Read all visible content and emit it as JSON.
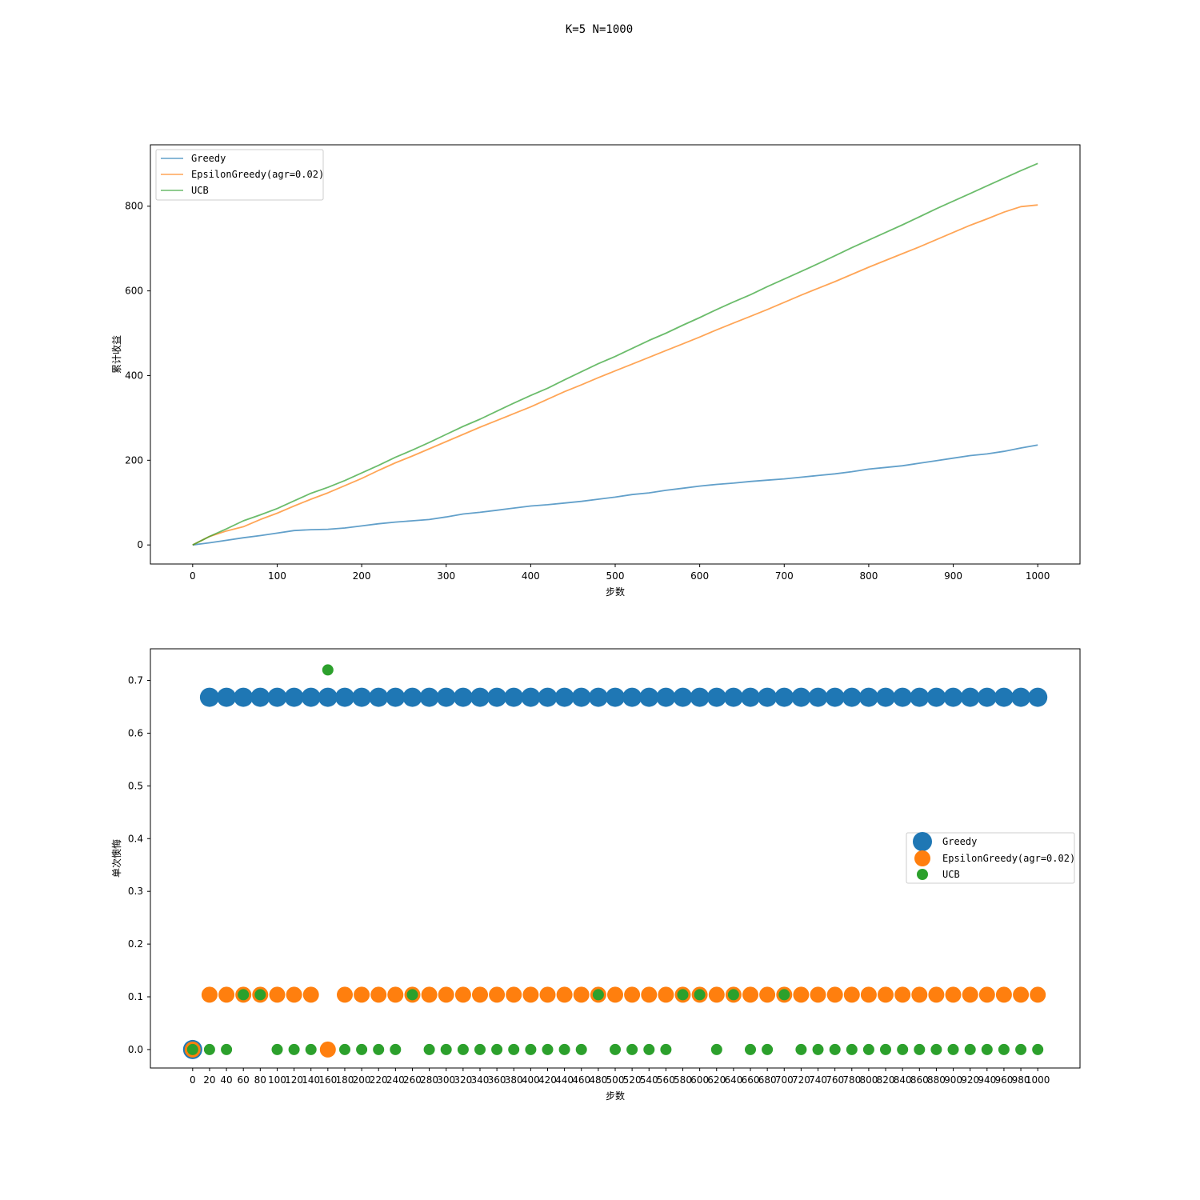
{
  "figure": {
    "title": "K=5 N=1000"
  },
  "chart_data": [
    {
      "type": "line",
      "title": "",
      "xlabel": "步数",
      "ylabel": "累计收益",
      "xlim": [
        -50,
        1050
      ],
      "ylim": [
        -45,
        945
      ],
      "xticks": [
        0,
        100,
        200,
        300,
        400,
        500,
        600,
        700,
        800,
        900,
        1000
      ],
      "yticks": [
        0,
        200,
        400,
        600,
        800
      ],
      "legend_position": "upper-left",
      "grid": false,
      "series": [
        {
          "name": "Greedy",
          "color": "#1f77b4",
          "x": [
            0,
            20,
            40,
            60,
            80,
            100,
            120,
            140,
            160,
            180,
            200,
            220,
            240,
            260,
            280,
            300,
            320,
            340,
            360,
            380,
            400,
            420,
            440,
            460,
            480,
            500,
            520,
            540,
            560,
            580,
            600,
            620,
            640,
            660,
            680,
            700,
            720,
            740,
            760,
            780,
            800,
            820,
            840,
            860,
            880,
            900,
            920,
            940,
            960,
            980,
            1000
          ],
          "y": [
            0,
            5,
            11,
            17,
            22,
            28,
            34,
            36,
            37,
            40,
            45,
            50,
            54,
            57,
            60,
            66,
            73,
            77,
            82,
            87,
            92,
            95,
            99,
            103,
            108,
            113,
            119,
            123,
            129,
            134,
            139,
            143,
            146,
            150,
            153,
            156,
            160,
            164,
            168,
            173,
            179,
            183,
            187,
            193,
            199,
            205,
            211,
            215,
            221,
            229,
            236
          ]
        },
        {
          "name": "EpsilonGreedy(agr=0.02)",
          "color": "#ff7f0e",
          "x": [
            0,
            20,
            40,
            60,
            80,
            100,
            120,
            140,
            160,
            180,
            200,
            220,
            240,
            260,
            280,
            300,
            320,
            340,
            360,
            380,
            400,
            420,
            440,
            460,
            480,
            500,
            520,
            540,
            560,
            580,
            600,
            620,
            640,
            660,
            680,
            700,
            720,
            740,
            760,
            780,
            800,
            820,
            840,
            860,
            880,
            900,
            920,
            940,
            960,
            980,
            1000
          ],
          "y": [
            0,
            20,
            33,
            43,
            60,
            75,
            92,
            108,
            123,
            140,
            157,
            176,
            194,
            210,
            227,
            244,
            261,
            278,
            294,
            310,
            326,
            344,
            362,
            378,
            395,
            411,
            427,
            443,
            459,
            475,
            491,
            508,
            524,
            540,
            556,
            573,
            590,
            606,
            622,
            639,
            656,
            672,
            688,
            704,
            721,
            738,
            755,
            770,
            786,
            799,
            803
          ]
        },
        {
          "name": "UCB",
          "color": "#2ca02c",
          "x": [
            0,
            20,
            40,
            60,
            80,
            100,
            120,
            140,
            160,
            180,
            200,
            220,
            240,
            260,
            280,
            300,
            320,
            340,
            360,
            380,
            400,
            420,
            440,
            460,
            480,
            500,
            520,
            540,
            560,
            580,
            600,
            620,
            640,
            660,
            680,
            700,
            720,
            740,
            760,
            780,
            800,
            820,
            840,
            860,
            880,
            900,
            920,
            940,
            960,
            980,
            1000
          ],
          "y": [
            0,
            20,
            38,
            57,
            71,
            86,
            104,
            122,
            136,
            152,
            170,
            188,
            207,
            224,
            242,
            261,
            280,
            297,
            316,
            335,
            353,
            370,
            390,
            409,
            428,
            445,
            464,
            483,
            500,
            519,
            537,
            556,
            574,
            591,
            610,
            628,
            646,
            664,
            683,
            702,
            720,
            738,
            756,
            775,
            794,
            812,
            830,
            848,
            866,
            884,
            901
          ]
        }
      ]
    },
    {
      "type": "scatter",
      "title": "",
      "xlabel": "步数",
      "ylabel": "单次懊悔",
      "xlim": [
        -50,
        1050
      ],
      "ylim": [
        -0.035,
        0.76
      ],
      "xticks": [
        0,
        20,
        40,
        60,
        80,
        100,
        120,
        140,
        160,
        180,
        200,
        220,
        240,
        260,
        280,
        300,
        320,
        340,
        360,
        380,
        400,
        420,
        440,
        460,
        480,
        500,
        520,
        540,
        560,
        580,
        600,
        620,
        640,
        660,
        680,
        700,
        720,
        740,
        760,
        780,
        800,
        820,
        840,
        860,
        880,
        900,
        920,
        940,
        960,
        980,
        1000
      ],
      "yticks": [
        0.0,
        0.1,
        0.2,
        0.3,
        0.4,
        0.5,
        0.6,
        0.7
      ],
      "ytick_labels": [
        "0.0",
        "0.1",
        "0.2",
        "0.3",
        "0.4",
        "0.5",
        "0.6",
        "0.7"
      ],
      "legend_position": "center-right",
      "grid": false,
      "series": [
        {
          "name": "Greedy",
          "color": "#1f77b4",
          "x": [
            0,
            20,
            40,
            60,
            80,
            100,
            120,
            140,
            160,
            180,
            200,
            220,
            240,
            260,
            280,
            300,
            320,
            340,
            360,
            380,
            400,
            420,
            440,
            460,
            480,
            500,
            520,
            540,
            560,
            580,
            600,
            620,
            640,
            660,
            680,
            700,
            720,
            740,
            760,
            780,
            800,
            820,
            840,
            860,
            880,
            900,
            920,
            940,
            960,
            980,
            1000
          ],
          "y": [
            0.0,
            0.668,
            0.668,
            0.668,
            0.668,
            0.668,
            0.668,
            0.668,
            0.668,
            0.668,
            0.668,
            0.668,
            0.668,
            0.668,
            0.668,
            0.668,
            0.668,
            0.668,
            0.668,
            0.668,
            0.668,
            0.668,
            0.668,
            0.668,
            0.668,
            0.668,
            0.668,
            0.668,
            0.668,
            0.668,
            0.668,
            0.668,
            0.668,
            0.668,
            0.668,
            0.668,
            0.668,
            0.668,
            0.668,
            0.668,
            0.668,
            0.668,
            0.668,
            0.668,
            0.668,
            0.668,
            0.668,
            0.668,
            0.668,
            0.668,
            0.668
          ]
        },
        {
          "name": "EpsilonGreedy(agr=0.02)",
          "color": "#ff7f0e",
          "x": [
            0,
            20,
            40,
            60,
            80,
            100,
            120,
            140,
            160,
            180,
            200,
            220,
            240,
            260,
            280,
            300,
            320,
            340,
            360,
            380,
            400,
            420,
            440,
            460,
            480,
            500,
            520,
            540,
            560,
            580,
            600,
            620,
            640,
            660,
            680,
            700,
            720,
            740,
            760,
            780,
            800,
            820,
            840,
            860,
            880,
            900,
            920,
            940,
            960,
            980,
            1000
          ],
          "y": [
            0.0,
            0.104,
            0.104,
            0.104,
            0.104,
            0.104,
            0.104,
            0.104,
            0.0,
            0.104,
            0.104,
            0.104,
            0.104,
            0.104,
            0.104,
            0.104,
            0.104,
            0.104,
            0.104,
            0.104,
            0.104,
            0.104,
            0.104,
            0.104,
            0.104,
            0.104,
            0.104,
            0.104,
            0.104,
            0.104,
            0.104,
            0.104,
            0.104,
            0.104,
            0.104,
            0.104,
            0.104,
            0.104,
            0.104,
            0.104,
            0.104,
            0.104,
            0.104,
            0.104,
            0.104,
            0.104,
            0.104,
            0.104,
            0.104,
            0.104,
            0.104
          ]
        },
        {
          "name": "UCB",
          "color": "#2ca02c",
          "x": [
            0,
            20,
            40,
            60,
            80,
            100,
            120,
            140,
            160,
            180,
            200,
            220,
            240,
            260,
            280,
            300,
            320,
            340,
            360,
            380,
            400,
            420,
            440,
            460,
            480,
            500,
            520,
            540,
            560,
            580,
            600,
            620,
            640,
            660,
            680,
            700,
            720,
            740,
            760,
            780,
            800,
            820,
            840,
            860,
            880,
            900,
            920,
            940,
            960,
            980,
            1000
          ],
          "y": [
            0.0,
            0.0,
            0.0,
            0.104,
            0.104,
            0.0,
            0.0,
            0.0,
            0.72,
            0.0,
            0.0,
            0.0,
            0.0,
            0.104,
            0.0,
            0.0,
            0.0,
            0.0,
            0.0,
            0.0,
            0.0,
            0.0,
            0.0,
            0.0,
            0.104,
            0.0,
            0.0,
            0.0,
            0.0,
            0.104,
            0.104,
            0.0,
            0.104,
            0.0,
            0.0,
            0.104,
            0.0,
            0.0,
            0.0,
            0.0,
            0.0,
            0.0,
            0.0,
            0.0,
            0.0,
            0.0,
            0.0,
            0.0,
            0.0,
            0.0,
            0.0
          ]
        }
      ]
    }
  ]
}
